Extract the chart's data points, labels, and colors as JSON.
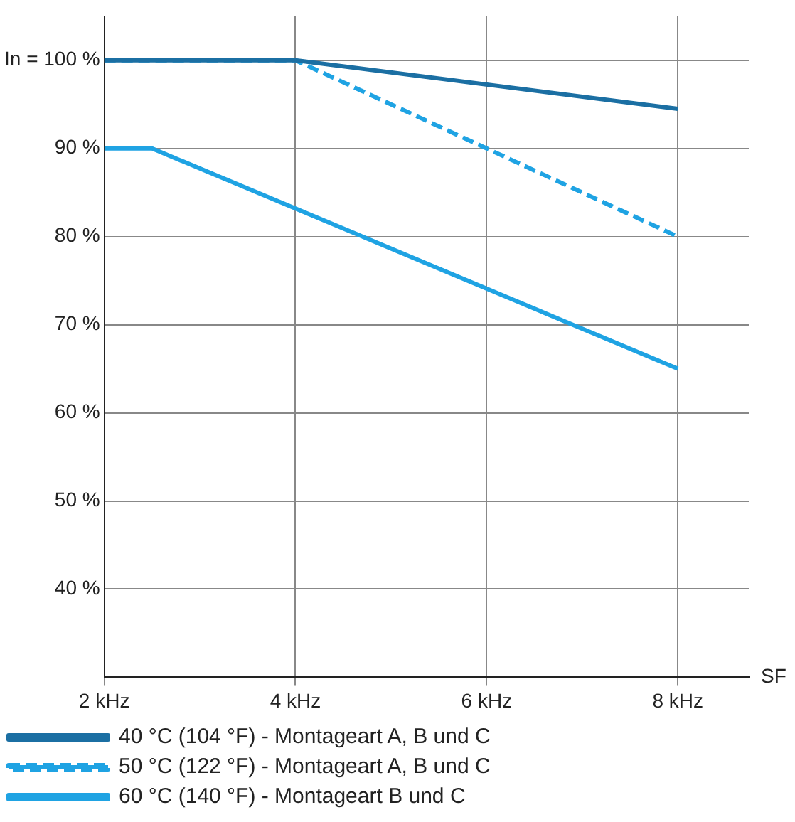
{
  "chart_data": {
    "type": "line",
    "xlabel": "SF",
    "xlim": [
      2,
      8.75
    ],
    "ylim": [
      30,
      105
    ],
    "xticks": [
      {
        "value": 2,
        "label": "2 kHz"
      },
      {
        "value": 4,
        "label": "4 kHz"
      },
      {
        "value": 6,
        "label": "6 kHz"
      },
      {
        "value": 8,
        "label": "8 kHz"
      }
    ],
    "yticks": [
      {
        "value": 40,
        "label": "40 %"
      },
      {
        "value": 50,
        "label": "50 %"
      },
      {
        "value": 60,
        "label": "60 %"
      },
      {
        "value": 70,
        "label": "70 %"
      },
      {
        "value": 80,
        "label": "80 %"
      },
      {
        "value": 90,
        "label": "90 %"
      },
      {
        "value": 100,
        "label": "In = 100 %"
      }
    ],
    "grid": true,
    "legend": "bottom",
    "marker": "none",
    "series": [
      {
        "name": "40 °C (104 °F) - Montageart A, B und C",
        "color": "#1b6fa3",
        "x": [
          2,
          4,
          8
        ],
        "values": [
          100,
          100,
          94.5
        ],
        "line_style": "solid"
      },
      {
        "name": "50 °C (122 °F) - Montageart A, B und C",
        "color": "#1fa3e3",
        "x": [
          2,
          4,
          6,
          8
        ],
        "values": [
          100,
          100,
          90,
          80
        ],
        "line_style": "dashed"
      },
      {
        "name": "60 °C (140 °F) - Montageart B und C",
        "color": "#1fa3e3",
        "x": [
          2,
          2.5,
          8
        ],
        "values": [
          90,
          90,
          65
        ],
        "line_style": "solid"
      }
    ]
  }
}
